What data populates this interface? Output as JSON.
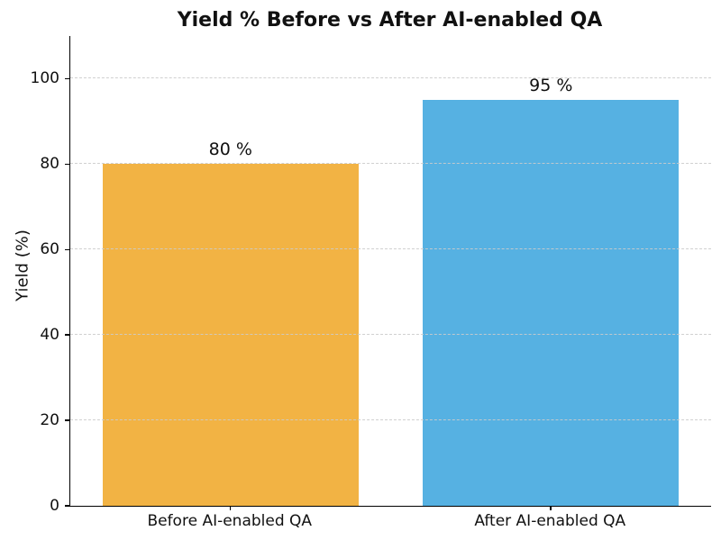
{
  "chart_data": {
    "type": "bar",
    "title": "Yield % Before vs After AI-enabled QA",
    "xlabel": "",
    "ylabel": "Yield (%)",
    "categories": [
      "Before AI-enabled QA",
      "After AI-enabled QA"
    ],
    "values": [
      80,
      95
    ],
    "bar_labels": [
      "80 %",
      "95 %"
    ],
    "bar_colors": [
      "#F2B344",
      "#56B1E2"
    ],
    "yticks": [
      0,
      20,
      40,
      60,
      80,
      100
    ],
    "ylim": [
      0,
      110
    ],
    "bar_width_fraction": 0.8,
    "grid": "horizontal dashed, drawn over bars",
    "grid_color": "#CCCCCC",
    "axis_color": "#000000",
    "text_color": "#111111",
    "background_color": "#FFFFFF",
    "legend": "none",
    "spines": "left and bottom only"
  }
}
